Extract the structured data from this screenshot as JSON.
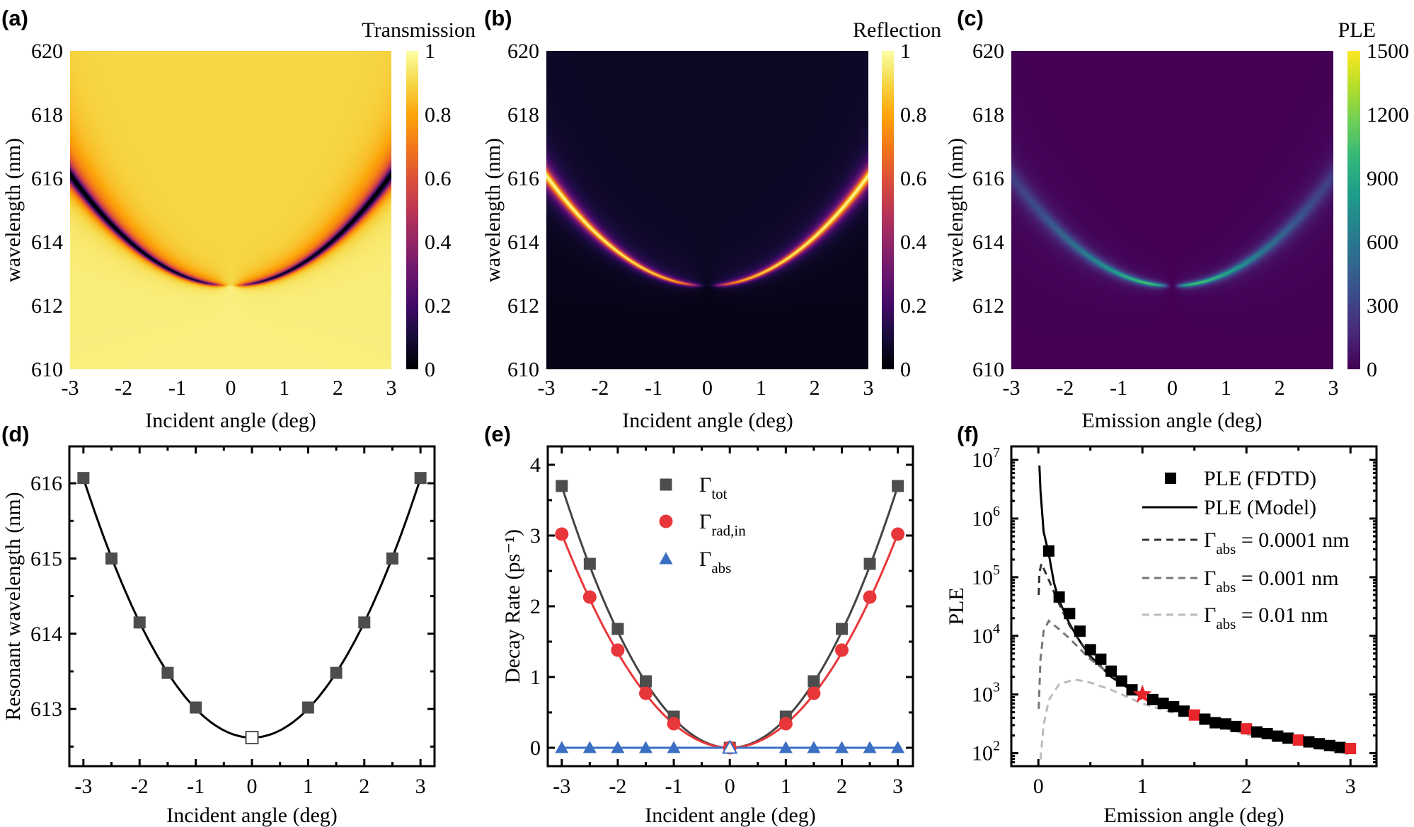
{
  "panel_letters": [
    "(a)",
    "(b)",
    "(c)",
    "(d)",
    "(e)",
    "(f)"
  ],
  "chart_data": [
    {
      "type": "heatmap",
      "letter": "(a)",
      "xlabel": "Incident angle (deg)",
      "ylabel": "wavelength (nm)",
      "xlim": [
        -3,
        3
      ],
      "ylim": [
        610,
        620
      ],
      "xticks": [
        -3,
        -2,
        -1,
        0,
        1,
        2,
        3
      ],
      "yticks": [
        610,
        612,
        614,
        616,
        618,
        620
      ],
      "colorbar": {
        "label": "Transmission",
        "colormap": "inferno",
        "range": [
          0,
          1
        ],
        "ticks": [
          0,
          0.2,
          0.4,
          0.6,
          0.8,
          1
        ]
      },
      "quantity": "transmission"
    },
    {
      "type": "heatmap",
      "letter": "(b)",
      "xlabel": "Incident angle (deg)",
      "ylabel": "wavelength (nm)",
      "xlim": [
        -3,
        3
      ],
      "ylim": [
        610,
        620
      ],
      "xticks": [
        -3,
        -2,
        -1,
        0,
        1,
        2,
        3
      ],
      "yticks": [
        610,
        612,
        614,
        616,
        618,
        620
      ],
      "colorbar": {
        "label": "Reflection",
        "colormap": "inferno",
        "range": [
          0,
          1
        ],
        "ticks": [
          0,
          0.2,
          0.4,
          0.6,
          0.8,
          1
        ]
      },
      "quantity": "reflection"
    },
    {
      "type": "heatmap",
      "letter": "(c)",
      "xlabel": "Emission angle (deg)",
      "ylabel": "wavelength (nm)",
      "xlim": [
        -3,
        3
      ],
      "ylim": [
        610,
        620
      ],
      "xticks": [
        -3,
        -2,
        -1,
        0,
        1,
        2,
        3
      ],
      "yticks": [
        610,
        612,
        614,
        616,
        618,
        620
      ],
      "colorbar": {
        "label": "PLE",
        "colormap": "viridis",
        "range": [
          0,
          1500
        ],
        "ticks": [
          0,
          300,
          600,
          900,
          1200,
          1500
        ]
      },
      "quantity": "PLE"
    },
    {
      "type": "scatter",
      "letter": "(d)",
      "xlabel": "Incident angle (deg)",
      "ylabel": "Resonant wavelength (nm)",
      "xlim": [
        -3.25,
        3.25
      ],
      "ylim": [
        612.24,
        616.49
      ],
      "xticks": [
        -3,
        -2,
        -1,
        0,
        1,
        2,
        3
      ],
      "yticks": [
        613,
        614,
        615,
        616
      ],
      "series": [
        {
          "x": [
            -3,
            -2.5,
            -2,
            -1.5,
            -1,
            0,
            1,
            1.5,
            2,
            2.5,
            3
          ],
          "y": [
            616.07,
            615.0,
            614.15,
            613.48,
            613.02,
            612.62,
            613.02,
            613.48,
            614.15,
            615.0,
            616.07
          ],
          "marker": "square",
          "color": "#4d4d4d",
          "hollow_at_x": [
            0
          ],
          "fit": {
            "type": "quadratic",
            "coefficients": [
              0.383,
              0,
              612.62
            ],
            "color": "#000000"
          }
        }
      ]
    },
    {
      "type": "scatter",
      "letter": "(e)",
      "xlabel": "Incident angle (deg)",
      "ylabel": "Decay Rate (ps⁻¹)",
      "xlim": [
        -3.25,
        3.27
      ],
      "ylim": [
        -0.26,
        4.26
      ],
      "xticks": [
        -3,
        -2,
        -1,
        0,
        1,
        2,
        3
      ],
      "yticks": [
        0,
        1,
        2,
        3,
        4
      ],
      "legend_position": "top-center",
      "series": [
        {
          "name": {
            "base": "Γ",
            "sub": "tot"
          },
          "x": [
            -3,
            -2.5,
            -2,
            -1.5,
            -1,
            0,
            1,
            1.5,
            2,
            2.5,
            3
          ],
          "y": [
            3.7,
            2.6,
            1.68,
            0.94,
            0.44,
            0,
            0.44,
            0.94,
            1.68,
            2.6,
            3.7
          ],
          "marker": "square",
          "color": "#4d4d4d",
          "fit": {
            "type": "quadratic",
            "coefficients": [
              0.411,
              0,
              0
            ],
            "color": "#444444"
          }
        },
        {
          "name": {
            "base": "Γ",
            "sub": "rad,in"
          },
          "x": [
            -3,
            -2.5,
            -2,
            -1.5,
            -1,
            0,
            1,
            1.5,
            2,
            2.5,
            3
          ],
          "y": [
            3.02,
            2.13,
            1.38,
            0.77,
            0.34,
            0,
            0.34,
            0.77,
            1.38,
            2.13,
            3.02
          ],
          "marker": "circle",
          "color": "#e8373a",
          "fit": {
            "type": "quadratic",
            "coefficients": [
              0.336,
              0,
              0
            ],
            "color": "#e8373a"
          }
        },
        {
          "name": {
            "base": "Γ",
            "sub": "abs"
          },
          "x": [
            -3,
            -2.5,
            -2,
            -1.5,
            -1,
            0,
            1,
            1.5,
            2,
            2.5,
            3
          ],
          "y": [
            0,
            0,
            0,
            0,
            0,
            0,
            0,
            0,
            0,
            0,
            0
          ],
          "marker": "triangle",
          "color": "#3a6fc4",
          "hollow_at_x": [
            0
          ],
          "fit": {
            "type": "quadratic",
            "coefficients": [
              0,
              0,
              0
            ],
            "color": "#3a6fc4"
          }
        }
      ]
    },
    {
      "type": "line",
      "letter": "(f)",
      "xlabel": "Emission angle (deg)",
      "ylabel": "PLE",
      "yscale": "log",
      "xlim": [
        -0.26,
        3.25
      ],
      "ylim": [
        60,
        17000000
      ],
      "xticks": [
        0,
        1,
        2,
        3
      ],
      "yticks": [
        100,
        1000,
        10000,
        100000,
        1000000,
        10000000
      ],
      "legend_position": "top-right",
      "series": [
        {
          "name": "PLE (FDTD)",
          "kind": "markers",
          "marker": "square",
          "color": "#000000",
          "highlight_color": "#e8252a",
          "highlight_x": [
            1.5,
            2.0,
            2.5,
            3.0
          ],
          "star_x": [
            1.0
          ],
          "x": [
            0.1,
            0.2,
            0.3,
            0.4,
            0.5,
            0.6,
            0.7,
            0.8,
            0.9,
            1.0,
            1.1,
            1.2,
            1.3,
            1.4,
            1.5,
            1.6,
            1.7,
            1.8,
            1.9,
            2.0,
            2.1,
            2.2,
            2.3,
            2.4,
            2.5,
            2.6,
            2.7,
            2.8,
            2.9,
            3.0
          ],
          "y": [
            280000,
            46000,
            24000,
            12000,
            5800,
            4000,
            2500,
            1700,
            1200,
            1000,
            820,
            706,
            620,
            520,
            447,
            380,
            330,
            315,
            285,
            260,
            230,
            215,
            195,
            180,
            167,
            156,
            145,
            135,
            125,
            120
          ]
        },
        {
          "name": "PLE (Model)",
          "kind": "line",
          "dash": "solid",
          "color": "#000000",
          "x": [
            0.01,
            0.02,
            0.05,
            0.1,
            0.15,
            0.2,
            0.3,
            0.4,
            0.5,
            0.7,
            1.0,
            1.5,
            2.0,
            2.5,
            3.0
          ],
          "y": [
            8000000,
            3000000,
            600000,
            250000,
            80000,
            40000,
            16000,
            8000,
            4500,
            2000,
            900,
            400,
            225,
            150,
            105
          ]
        },
        {
          "name": {
            "base": "Γ",
            "sub": "abs",
            "rest": " = 0.0001 nm"
          },
          "kind": "line",
          "dash": "dashed",
          "color": "#333333",
          "x": [
            0.003,
            0.01,
            0.03,
            0.06,
            0.1,
            0.2,
            0.3,
            0.5,
            1.0,
            2.0,
            3.0
          ],
          "y": [
            50000,
            120000,
            170000,
            130000,
            90000,
            35000,
            15000,
            4300,
            880,
            220,
            103
          ]
        },
        {
          "name": {
            "base": "Γ",
            "sub": "abs",
            "rest": " = 0.001 nm"
          },
          "kind": "line",
          "dash": "dashed",
          "color": "#777777",
          "x": [
            0.003,
            0.02,
            0.05,
            0.1,
            0.2,
            0.3,
            0.5,
            1.0,
            2.0,
            3.0
          ],
          "y": [
            570,
            4000,
            12000,
            18000,
            13000,
            9000,
            4000,
            850,
            215,
            100
          ]
        },
        {
          "name": {
            "base": "Γ",
            "sub": "abs",
            "rest": " = 0.01 nm"
          },
          "kind": "line",
          "dash": "dashed",
          "color": "#bbbbbb",
          "x": [
            0.02,
            0.05,
            0.1,
            0.2,
            0.35,
            0.5,
            0.7,
            1.0,
            1.5,
            2.0,
            3.0
          ],
          "y": [
            78,
            300,
            800,
            1500,
            1800,
            1600,
            1200,
            700,
            380,
            210,
            95
          ]
        }
      ]
    }
  ]
}
